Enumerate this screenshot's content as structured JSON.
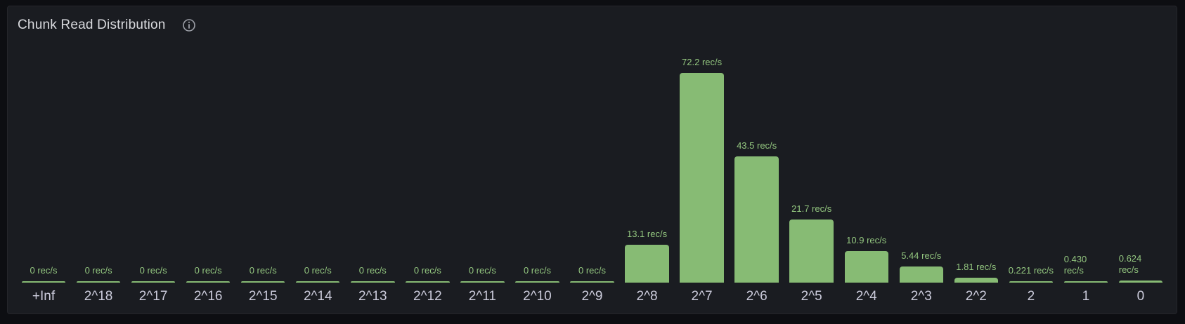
{
  "panel": {
    "title": "Chunk Read Distribution",
    "info_icon": "info-circle-icon"
  },
  "colors": {
    "page_background": "#0d0e12",
    "panel_background": "#1a1c21",
    "panel_border": "#25262b",
    "title_text": "#d9dade",
    "info_icon": "#9da0a8",
    "bar_fill": "#87bb74",
    "value_label_text": "#93c67f",
    "tick_label_text": "#ccccdc"
  },
  "chart_data": {
    "type": "bar",
    "title": "Chunk Read Distribution",
    "orientation": "vertical",
    "unit": "rec/s",
    "grid": false,
    "legend": false,
    "ylim": [
      0,
      75
    ],
    "categories": [
      "+Inf",
      "2^18",
      "2^17",
      "2^16",
      "2^15",
      "2^14",
      "2^13",
      "2^12",
      "2^11",
      "2^10",
      "2^9",
      "2^8",
      "2^7",
      "2^6",
      "2^5",
      "2^4",
      "2^3",
      "2^2",
      "2",
      "1",
      "0"
    ],
    "values": [
      0,
      0,
      0,
      0,
      0,
      0,
      0,
      0,
      0,
      0,
      0,
      13.1,
      72.2,
      43.5,
      21.7,
      10.9,
      5.44,
      1.81,
      0.221,
      0.43,
      0.624
    ],
    "value_labels": [
      "0 rec/s",
      "0 rec/s",
      "0 rec/s",
      "0 rec/s",
      "0 rec/s",
      "0 rec/s",
      "0 rec/s",
      "0 rec/s",
      "0 rec/s",
      "0 rec/s",
      "0 rec/s",
      "13.1 rec/s",
      "72.2 rec/s",
      "43.5 rec/s",
      "21.7 rec/s",
      "10.9 rec/s",
      "5.44 rec/s",
      "1.81 rec/s",
      "0.221 rec/s",
      "0.430 rec/s",
      "0.624 rec/s"
    ],
    "wrapped_labels": [
      false,
      false,
      false,
      false,
      false,
      false,
      false,
      false,
      false,
      false,
      false,
      false,
      false,
      false,
      false,
      false,
      false,
      false,
      false,
      true,
      true
    ]
  }
}
